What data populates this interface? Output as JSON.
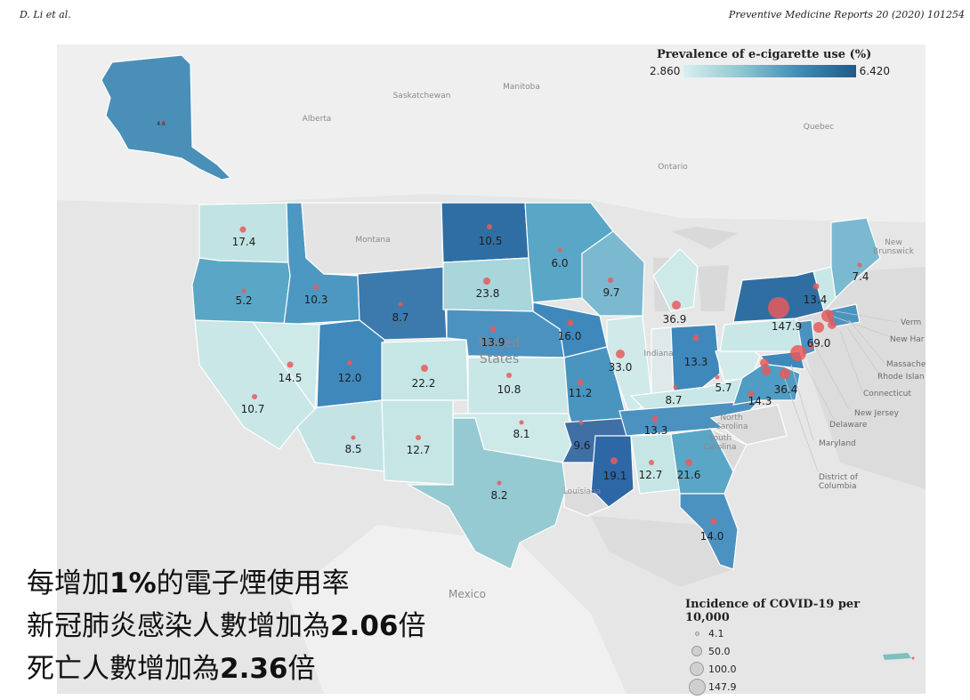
{
  "header": {
    "left": "D. Li et al.",
    "right": "Preventive Medicine Reports 20 (2020) 101254"
  },
  "legend_color": {
    "title": "Prevalence of e-cigarette use (%)",
    "min": "2.860",
    "max": "6.420",
    "colors": [
      "#d8efef",
      "#8ec7d0",
      "#3f8db5",
      "#1f5a8a"
    ]
  },
  "legend_size": {
    "title": "Incidence of COVID-19 per 10,000",
    "items": [
      "4.1",
      "50.0",
      "100.0",
      "147.9"
    ]
  },
  "overlay": {
    "line1_a": "每增加",
    "line1_b": "1%",
    "line1_c": "的電子煙使用率",
    "line2_a": "新冠肺炎感染人數增加為",
    "line2_b": "2.06",
    "line2_c": "倍",
    "line3_a": "死亡人數增加為",
    "line3_b": "2.36",
    "line3_c": "倍"
  },
  "background_places": {
    "saskatchewan": "Saskatchewan",
    "manitoba": "Manitoba",
    "alberta": "Alberta",
    "quebec": "Quebec",
    "ontario": "Ontario",
    "montana": "Montana",
    "united": "United",
    "states": "States",
    "indiana": "Indiana",
    "north_carolina_1": "North",
    "north_carolina_2": "Carolina",
    "south_carolina_1": "South",
    "south_carolina_2": "Carolina",
    "louisiana": "Louisiana",
    "mexico": "Mexico",
    "new_brunswick_1": "New",
    "new_brunswick_2": "Brunswick"
  },
  "side_labels": {
    "vermont": "Verm",
    "new_hampshire": "New Har",
    "massachusetts": "Massache",
    "rhode_island": "Rhode Islan",
    "connecticut": "Connecticut",
    "new_jersey": "New Jersey",
    "delaware": "Delaware",
    "maryland": "Maryland",
    "dc_1": "District of",
    "dc_2": "Columbia"
  },
  "state_values": {
    "AK": "4.6",
    "WA": "17.4",
    "OR": "5.2",
    "ID": "10.3",
    "WY": "8.7",
    "ND": "10.5",
    "MN": "6.0",
    "SD": "23.8",
    "WI": "9.7",
    "MI": "36.9",
    "NE": "13.9",
    "IA": "16.0",
    "NY": "147.9",
    "VT_NH": "13.4",
    "ME": "7.4",
    "NV": "14.5",
    "UT": "12.0",
    "CO": "22.2",
    "IL": "33.0",
    "OH": "13.3",
    "PA": "69.0",
    "CA": "10.7",
    "KS": "10.8",
    "MO": "11.2",
    "KY": "8.7",
    "WV": "5.7",
    "VA": "14.3",
    "MD": "36.4",
    "AZ": "8.5",
    "NM": "12.7",
    "OK": "8.1",
    "AR": "9.6",
    "TN": "13.3",
    "TX": "8.2",
    "MS": "19.1",
    "AL": "12.7",
    "GA": "21.6",
    "FL": "14.0"
  }
}
